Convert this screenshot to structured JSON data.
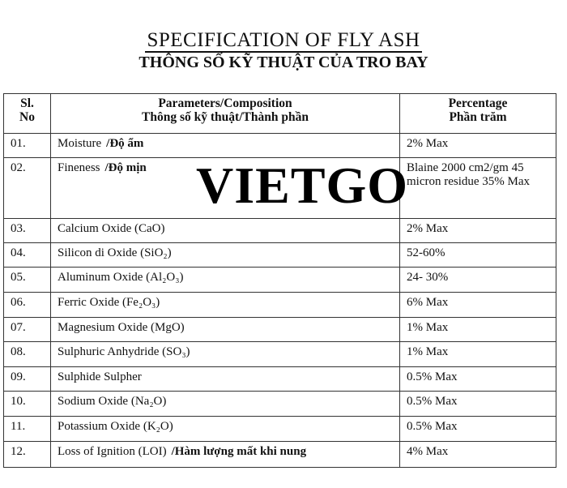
{
  "title": "SPECIFICATION OF FLY ASH",
  "subtitle": "THÔNG SỐ KỸ THUẬT CỦA TRO BAY",
  "watermark": "VIETGO",
  "table": {
    "headers": [
      {
        "line1": "Sl.",
        "line2": "No"
      },
      {
        "line1": "Parameters/Composition",
        "line2": "Thông số kỹ thuật/Thành phần"
      },
      {
        "line1": "Percentage",
        "line2": "Phần trăm"
      }
    ],
    "rows": [
      {
        "no": "01.",
        "param": "Moisture",
        "param_vi": "/Độ ẩm",
        "pct": "2% Max"
      },
      {
        "no": "02.",
        "param": "Fineness",
        "param_vi": "/Độ mịn",
        "pct": "Blaine 2000 cm2/gm 45 micron residue 35% Max"
      },
      {
        "no": "03.",
        "param": "Calcium  Oxide (CaO)",
        "param_vi": "",
        "pct": "2% Max"
      },
      {
        "no": "04.",
        "param": "Silicon di Oxide (SiO₂)",
        "param_vi": "",
        "pct": "52-60%"
      },
      {
        "no": "05.",
        "param": "Aluminum Oxide (Al₂O₃)",
        "param_vi": "",
        "pct": "24- 30%"
      },
      {
        "no": "06.",
        "param": "Ferric Oxide (Fe₂O₃)",
        "param_vi": "",
        "pct": "6% Max"
      },
      {
        "no": "07.",
        "param": "Magnesium  Oxide (MgO)",
        "param_vi": "",
        "pct": "1% Max"
      },
      {
        "no": "08.",
        "param": "Sulphuric Anhydride (SO₃)",
        "param_vi": "",
        "pct": "1% Max"
      },
      {
        "no": "09.",
        "param": "Sulphide Sulpher",
        "param_vi": "",
        "pct": "0.5% Max"
      },
      {
        "no": "10.",
        "param": "Sodium Oxide (Na₂O)",
        "param_vi": "",
        "pct": "0.5% Max"
      },
      {
        "no": "11.",
        "param": "Potassium Oxide (K₂O)",
        "param_vi": "",
        "pct": "0.5% Max"
      },
      {
        "no": "12.",
        "param": "Loss of Ignition (LOI)",
        "param_vi": "/Hàm lượng mất khi nung",
        "pct": "4% Max"
      }
    ]
  }
}
